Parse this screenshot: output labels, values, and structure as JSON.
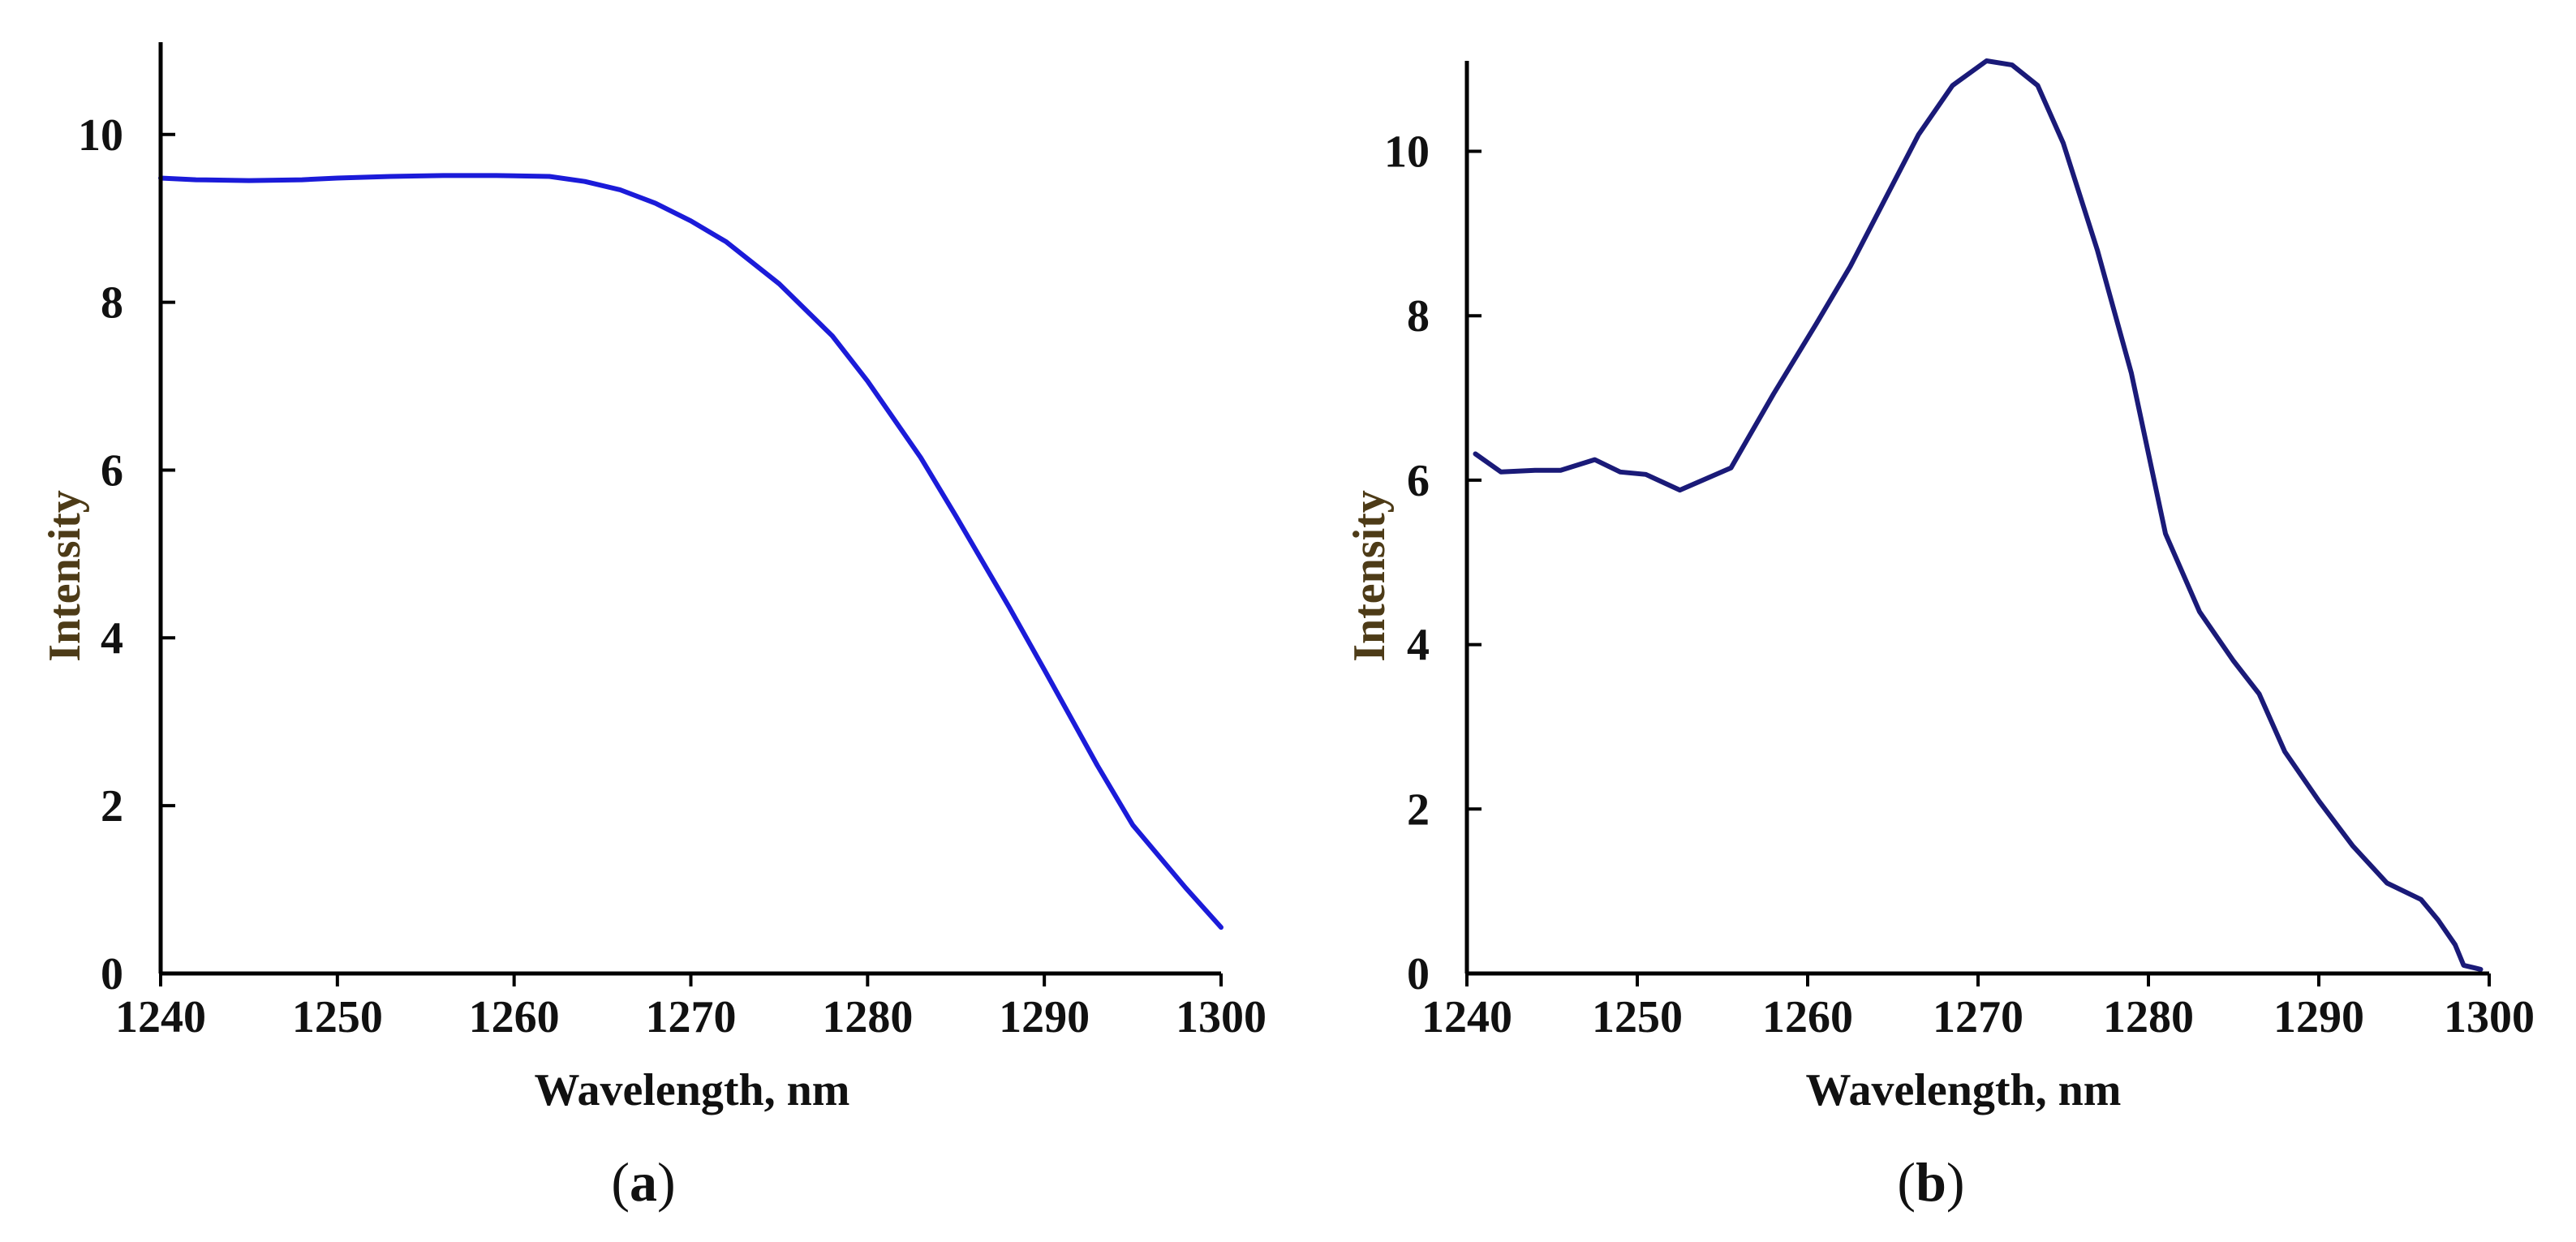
{
  "colors": {
    "axis": "#000000",
    "series_a": "#1b1bd9",
    "series_b": "#1a1a78",
    "x_title": "#111111",
    "y_title": "#4d3b17"
  },
  "chart_data": [
    {
      "type": "line",
      "panel": "a",
      "panel_label": "a",
      "xlabel": "Wavelength, nm",
      "ylabel": "Intensity",
      "xlim": [
        1240,
        1300
      ],
      "ylim": [
        0,
        11.1
      ],
      "xticks": [
        1240,
        1250,
        1260,
        1270,
        1280,
        1290,
        1300
      ],
      "yticks": [
        0,
        2,
        4,
        6,
        8,
        10
      ],
      "grid": false,
      "series": [
        {
          "name": "a",
          "x": [
            1240,
            1242,
            1245,
            1248,
            1250,
            1253,
            1256,
            1259,
            1262,
            1264,
            1266,
            1268,
            1270,
            1272,
            1275,
            1278,
            1280,
            1283,
            1285,
            1288,
            1290,
            1293,
            1295,
            1298,
            1300
          ],
          "y": [
            9.48,
            9.46,
            9.45,
            9.46,
            9.48,
            9.5,
            9.51,
            9.51,
            9.5,
            9.44,
            9.34,
            9.18,
            8.97,
            8.72,
            8.22,
            7.6,
            7.06,
            6.15,
            5.45,
            4.37,
            3.62,
            2.48,
            1.77,
            1.02,
            0.55
          ]
        }
      ]
    },
    {
      "type": "line",
      "panel": "b",
      "panel_label": "b",
      "xlabel": "Wavelength, nm",
      "ylabel": "Intensity",
      "xlim": [
        1240,
        1300
      ],
      "ylim": [
        0,
        11.1
      ],
      "xticks": [
        1240,
        1250,
        1260,
        1270,
        1280,
        1290,
        1300
      ],
      "yticks": [
        0,
        2,
        4,
        6,
        8,
        10
      ],
      "grid": false,
      "series": [
        {
          "name": "b",
          "x": [
            1240.5,
            1242,
            1244,
            1245.5,
            1247.5,
            1249,
            1250.5,
            1252.5,
            1255.5,
            1258,
            1260.5,
            1262.5,
            1264.5,
            1266.5,
            1268.5,
            1270.5,
            1272,
            1273.5,
            1275,
            1277,
            1279,
            1281,
            1283,
            1285,
            1286.5,
            1288,
            1290,
            1292,
            1294,
            1296,
            1297,
            1298,
            1298.5,
            1299.5
          ],
          "y": [
            6.32,
            6.1,
            6.12,
            6.12,
            6.25,
            6.1,
            6.07,
            5.88,
            6.15,
            7.05,
            7.9,
            8.6,
            9.4,
            10.2,
            10.8,
            11.1,
            11.05,
            10.8,
            10.1,
            8.8,
            7.3,
            5.35,
            4.4,
            3.8,
            3.4,
            2.7,
            2.1,
            1.55,
            1.1,
            0.9,
            0.65,
            0.35,
            0.1,
            0.05
          ]
        }
      ]
    }
  ]
}
